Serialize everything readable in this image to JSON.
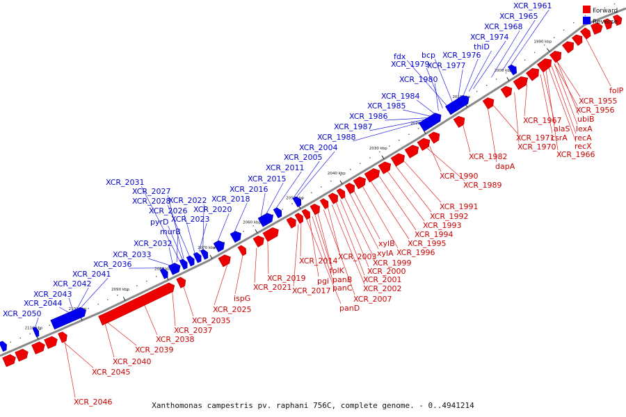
{
  "caption": "Xanthomonas campestris pv. raphani 756C, complete genome. - 0..4941214",
  "legend": [
    {
      "name": "Forward",
      "color": "#ee0000"
    },
    {
      "name": "Reverse",
      "color": "#0000ee"
    }
  ],
  "colors": {
    "forward": "#ee0000",
    "reverse": "#0000ee",
    "forward_label": "#cc0000",
    "reverse_label": "#0000cc",
    "backbone": "#888888"
  },
  "ticks": [
    "1990 kbp",
    "2000 kbp",
    "2010 kbp",
    "2020 kbp",
    "2030 kbp",
    "2040 kbp",
    "2050 kbp",
    "2060 kbp",
    "2070 kbp",
    "2080 kbp",
    "2090 kbp",
    "2100 kbp",
    "2110 kbp"
  ],
  "forward_labels": [
    "folP",
    "XCR_1955",
    "XCR_1956",
    "ubiB",
    "lexA",
    "recA",
    "recX",
    "XCR_1966",
    "alaS",
    "csrA",
    "XCR_1967",
    "XCR_1970",
    "XCR_1971",
    "dapA",
    "XCR_1982",
    "XCR_1990",
    "XCR_1989",
    "XCR_1991",
    "XCR_1992",
    "XCR_1993",
    "XCR_1994",
    "XCR_1995",
    "XCR_1996",
    "xylB",
    "xylA",
    "XCR_1999",
    "XCR_2000",
    "XCR_2001",
    "XCR_2002",
    "XCR_2003",
    "XCR_2007",
    "XCR_2014",
    "folK",
    "panB",
    "pgi",
    "panC",
    "panD",
    "XCR_2019",
    "XCR_2017",
    "XCR_2021",
    "ispG",
    "XCR_2025",
    "XCR_2035",
    "XCR_2037",
    "XCR_2038",
    "XCR_2039",
    "XCR_2040",
    "XCR_2045",
    "XCR_2046"
  ],
  "reverse_labels": [
    "XCR_1961",
    "XCR_1965",
    "XCR_1968",
    "XCR_1974",
    "thiD",
    "XCR_1976",
    "bcp",
    "fdx",
    "XCR_1977",
    "XCR_1979",
    "XCR_1980",
    "XCR_1984",
    "XCR_1985",
    "XCR_1986",
    "XCR_1987",
    "XCR_1988",
    "XCR_2004",
    "XCR_2005",
    "XCR_2011",
    "XCR_2015",
    "XCR_2016",
    "XCR_2018",
    "XCR_2031",
    "XCR_2027",
    "XCR_2028",
    "XCR_2022",
    "XCR_2026",
    "pyrD",
    "XCR_2020",
    "XCR_2023",
    "murB",
    "XCR_2032",
    "XCR_2033",
    "XCR_2036",
    "XCR_2041",
    "XCR_2042",
    "XCR_2043",
    "XCR_2044",
    "XCR_2050"
  ]
}
